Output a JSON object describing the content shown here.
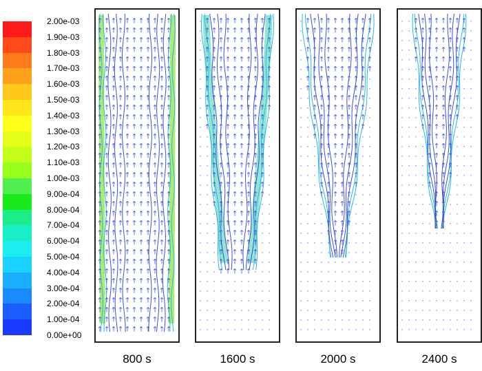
{
  "colorbar": {
    "labels": [
      "2.00e-03",
      "1.90e-03",
      "1.80e-03",
      "1.70e-03",
      "1.60e-03",
      "1.50e-03",
      "1.40e-03",
      "1.30e-03",
      "1.20e-03",
      "1.10e-03",
      "1.00e-03",
      "9.00e-04",
      "8.00e-04",
      "7.00e-04",
      "6.00e-04",
      "5.00e-04",
      "4.00e-04",
      "3.00e-04",
      "2.00e-04",
      "1.00e-04",
      "0.00e+00"
    ],
    "colors": [
      "#ff1a1a",
      "#ff4a1a",
      "#ff7a1a",
      "#ffa21a",
      "#ffc81a",
      "#ffe61a",
      "#ffff1a",
      "#e6ff1a",
      "#c4ff1a",
      "#98ff1a",
      "#50f050",
      "#1aea1a",
      "#1aee8a",
      "#1aeec4",
      "#1aeeee",
      "#1ad2ff",
      "#1aaeff",
      "#1a8aff",
      "#1a5eff",
      "#1a3aff"
    ]
  },
  "panels": [
    {
      "label": "800 s"
    },
    {
      "label": "1600 s"
    },
    {
      "label": "2000 s"
    },
    {
      "label": "2400 s"
    }
  ]
}
